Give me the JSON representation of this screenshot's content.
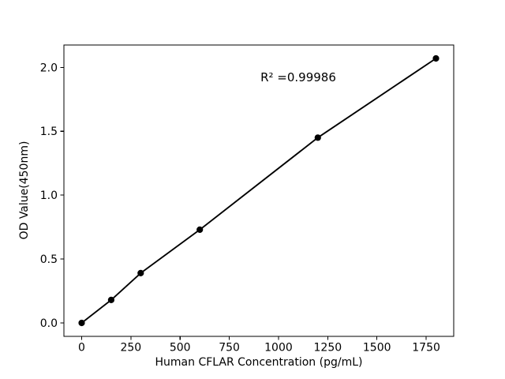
{
  "figure": {
    "background": "#ffffff",
    "frame_color": "#000000"
  },
  "chart_data": {
    "type": "line",
    "title": "",
    "xlabel": "Human CFLAR Concentration (pg/mL)",
    "ylabel": "OD Value(450nm)",
    "series": [
      {
        "name": "standard-curve",
        "x": [
          0,
          150,
          300,
          600,
          1200,
          1800
        ],
        "y": [
          0.0,
          0.18,
          0.39,
          0.73,
          1.45,
          2.07
        ]
      }
    ],
    "annotation": {
      "text": "R² =0.99986",
      "x": 1100,
      "y": 1.92
    },
    "xticks": {
      "values": [
        0,
        250,
        500,
        750,
        1000,
        1250,
        1500,
        1750
      ],
      "labels": [
        "0",
        "250",
        "500",
        "750",
        "1000",
        "1250",
        "1500",
        "1750"
      ]
    },
    "yticks": {
      "values": [
        0.0,
        0.5,
        1.0,
        1.5,
        2.0
      ],
      "labels": [
        "0.0",
        "0.5",
        "1.0",
        "1.5",
        "2.0"
      ]
    },
    "xlim": [
      -90,
      1890
    ],
    "ylim": [
      -0.105,
      2.175
    ],
    "grid": false,
    "legend": "none",
    "line_color": "#000000",
    "marker": "circle",
    "marker_color": "#000000"
  }
}
